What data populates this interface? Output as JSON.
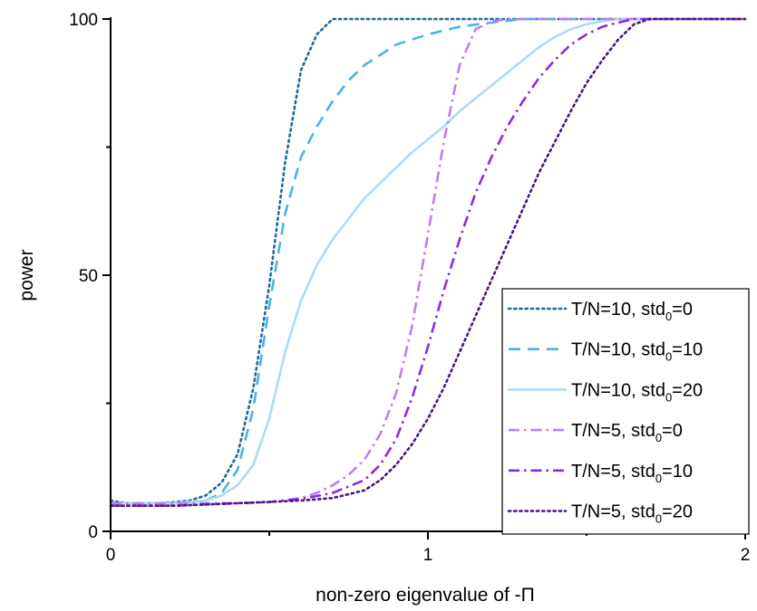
{
  "chart_data": {
    "type": "line",
    "title": "",
    "xlabel": "non-zero eigenvalue of -Π",
    "ylabel": "power",
    "xlim": [
      0,
      2
    ],
    "ylim": [
      0,
      100
    ],
    "x_ticks": [
      0,
      1,
      2
    ],
    "x_tick_labels": [
      "0",
      "1",
      "2"
    ],
    "y_ticks": [
      0,
      50,
      100
    ],
    "y_tick_labels": [
      "0",
      "50",
      "100"
    ],
    "grid": false,
    "legend_position": "bottom-right",
    "series": [
      {
        "name": "T/N=10, std0=0",
        "legend": {
          "prefix": "T/N=10, std",
          "sub": "0",
          "suffix": "=0"
        },
        "color": "#1a6a9c",
        "dash": "dotted",
        "x": [
          0,
          0.05,
          0.1,
          0.15,
          0.2,
          0.25,
          0.3,
          0.35,
          0.4,
          0.45,
          0.5,
          0.55,
          0.6,
          0.65,
          0.7,
          0.75,
          0.8,
          1.0,
          1.5,
          2.0
        ],
        "y": [
          6,
          5.5,
          5.5,
          5.5,
          5.7,
          6,
          7,
          9.5,
          15,
          28,
          48,
          72,
          90,
          97,
          100,
          100,
          100,
          100,
          100,
          100
        ]
      },
      {
        "name": "T/N=10, std0=10",
        "legend": {
          "prefix": "T/N=10, std",
          "sub": "0",
          "suffix": "=10"
        },
        "color": "#48b4e6",
        "dash": "dashed",
        "x": [
          0,
          0.1,
          0.2,
          0.25,
          0.3,
          0.35,
          0.4,
          0.45,
          0.5,
          0.55,
          0.6,
          0.65,
          0.7,
          0.75,
          0.8,
          0.85,
          0.9,
          1.0,
          1.1,
          1.2,
          1.3,
          1.4,
          2.0
        ],
        "y": [
          5.5,
          5.5,
          5.5,
          5.7,
          6,
          7.5,
          12,
          24,
          44,
          62,
          73,
          79,
          84,
          88,
          91,
          93,
          95,
          97,
          98.5,
          99.3,
          100,
          100,
          100
        ]
      },
      {
        "name": "T/N=10, std0=20",
        "legend": {
          "prefix": "T/N=10, std",
          "sub": "0",
          "suffix": "=20"
        },
        "color": "#b0daf2",
        "dash": "solid",
        "x": [
          0,
          0.1,
          0.2,
          0.3,
          0.35,
          0.4,
          0.45,
          0.5,
          0.55,
          0.6,
          0.65,
          0.7,
          0.75,
          0.8,
          0.85,
          0.9,
          0.95,
          1.0,
          1.05,
          1.1,
          1.15,
          1.2,
          1.25,
          1.3,
          1.35,
          1.4,
          1.45,
          1.5,
          1.55,
          1.6,
          2.0
        ],
        "y": [
          5.5,
          5.5,
          5.5,
          6,
          7,
          9,
          13,
          22,
          35,
          45,
          52,
          57,
          61,
          65,
          68,
          71,
          74,
          76.5,
          79,
          82,
          84.5,
          87,
          89.5,
          92,
          94.5,
          96.5,
          98,
          99,
          99.6,
          100,
          100
        ]
      },
      {
        "name": "T/N=5, std0=0",
        "legend": {
          "prefix": "T/N=5, std",
          "sub": "0",
          "suffix": "=0"
        },
        "color": "#c07cf0",
        "dash": "dashdot",
        "x": [
          0,
          0.2,
          0.4,
          0.5,
          0.6,
          0.65,
          0.7,
          0.75,
          0.8,
          0.85,
          0.9,
          0.95,
          1.0,
          1.05,
          1.1,
          1.15,
          1.2,
          1.25,
          1.3,
          2.0
        ],
        "y": [
          5.5,
          5.5,
          5.5,
          5.7,
          6.5,
          7.5,
          9,
          11,
          14,
          19,
          27,
          40,
          58,
          76,
          91,
          98,
          99.5,
          100,
          100,
          100
        ]
      },
      {
        "name": "T/N=5, std0=10",
        "legend": {
          "prefix": "T/N=5, std",
          "sub": "0",
          "suffix": "=10"
        },
        "color": "#8a2be2",
        "dash": "dashdot",
        "x": [
          0,
          0.2,
          0.4,
          0.5,
          0.6,
          0.7,
          0.8,
          0.85,
          0.9,
          0.95,
          1.0,
          1.05,
          1.1,
          1.15,
          1.2,
          1.25,
          1.3,
          1.35,
          1.4,
          1.45,
          1.5,
          1.55,
          1.6,
          1.65,
          1.7,
          2.0
        ],
        "y": [
          5,
          5,
          5.5,
          5.7,
          6.3,
          7.5,
          10,
          13,
          18,
          26,
          36,
          47,
          57,
          66,
          73,
          79,
          84,
          88.5,
          92,
          95,
          97,
          98.5,
          99.3,
          100,
          100,
          100
        ]
      },
      {
        "name": "T/N=5, std0=20",
        "legend": {
          "prefix": "T/N=5, std",
          "sub": "0",
          "suffix": "=20"
        },
        "color": "#4b1680",
        "dash": "dotted",
        "x": [
          0,
          0.2,
          0.4,
          0.6,
          0.7,
          0.8,
          0.85,
          0.9,
          0.95,
          1.0,
          1.05,
          1.1,
          1.15,
          1.2,
          1.25,
          1.3,
          1.35,
          1.4,
          1.45,
          1.5,
          1.55,
          1.6,
          1.65,
          1.7,
          1.75,
          2.0
        ],
        "y": [
          5,
          5,
          5.5,
          6,
          6.5,
          8,
          10,
          13,
          17,
          22,
          28,
          35,
          42,
          49,
          56,
          63,
          70,
          76,
          82,
          87.5,
          92,
          96,
          99,
          100,
          100,
          100
        ]
      }
    ]
  }
}
